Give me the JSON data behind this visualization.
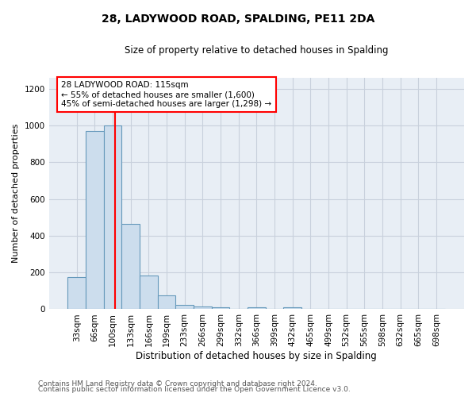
{
  "title": "28, LADYWOOD ROAD, SPALDING, PE11 2DA",
  "subtitle": "Size of property relative to detached houses in Spalding",
  "xlabel": "Distribution of detached houses by size in Spalding",
  "ylabel": "Number of detached properties",
  "bar_labels": [
    "33sqm",
    "66sqm",
    "100sqm",
    "133sqm",
    "166sqm",
    "199sqm",
    "233sqm",
    "266sqm",
    "299sqm",
    "332sqm",
    "366sqm",
    "399sqm",
    "432sqm",
    "465sqm",
    "499sqm",
    "532sqm",
    "565sqm",
    "598sqm",
    "632sqm",
    "665sqm",
    "698sqm"
  ],
  "bar_values": [
    175,
    970,
    1000,
    465,
    185,
    75,
    25,
    15,
    10,
    0,
    10,
    0,
    10,
    0,
    0,
    0,
    0,
    0,
    0,
    0,
    0
  ],
  "bar_color": "#ccdded",
  "bar_edge_color": "#6699bb",
  "red_line_x": 2.15,
  "ylim": [
    0,
    1260
  ],
  "yticks": [
    0,
    200,
    400,
    600,
    800,
    1000,
    1200
  ],
  "annotation_title": "28 LADYWOOD ROAD: 115sqm",
  "annotation_line1": "← 55% of detached houses are smaller (1,600)",
  "annotation_line2": "45% of semi-detached houses are larger (1,298) →",
  "footer_line1": "Contains HM Land Registry data © Crown copyright and database right 2024.",
  "footer_line2": "Contains public sector information licensed under the Open Government Licence v3.0.",
  "background_color": "#ffffff",
  "plot_bg_color": "#e8eef5",
  "grid_color": "#c8d0dc"
}
